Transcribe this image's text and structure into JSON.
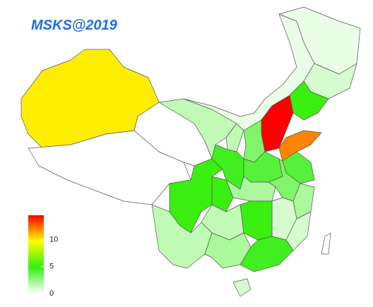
{
  "chart_data": {
    "type": "choropleth",
    "title": "MSKS@2019",
    "values": [
      10,
      0,
      0,
      1.5,
      0.5,
      0.5,
      1,
      5,
      14.5,
      12,
      3,
      1.5,
      4.5,
      4,
      4,
      3,
      2,
      5,
      5,
      2,
      1,
      5,
      1,
      1.5,
      1.5,
      2,
      4.5,
      1,
      0
    ],
    "colors": [
      "#ffffff",
      "#33ee11",
      "#ffff00",
      "#ff0000"
    ],
    "legend": {
      "lim": [
        0,
        14.5
      ],
      "ticks": [
        0,
        5,
        10
      ]
    }
  }
}
